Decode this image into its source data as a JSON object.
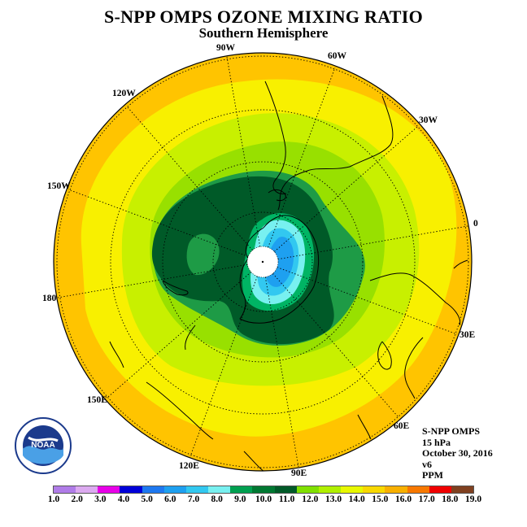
{
  "title": "S-NPP OMPS OZONE MIXING RATIO",
  "subtitle": "Southern Hemisphere",
  "lon_labels": {
    "w90": "90W",
    "w60": "60W",
    "w30": "30W",
    "e0": "0",
    "e30": "30E",
    "e60": "60E",
    "e90": "90E",
    "e120": "120E",
    "e150": "150E",
    "e180": "180",
    "w150": "150W",
    "w120": "120W"
  },
  "info": {
    "instrument": "S-NPP OMPS",
    "pressure": "15 hPa",
    "date": "October 30, 2016",
    "version": "v6",
    "units": "PPM"
  },
  "logo": {
    "text": "NOAA",
    "icon": "noaa-logo-icon"
  },
  "colorbar": {
    "ticks": [
      "1.0",
      "2.0",
      "3.0",
      "4.0",
      "5.0",
      "6.0",
      "7.0",
      "8.0",
      "9.0",
      "10.0",
      "11.0",
      "12.0",
      "13.0",
      "14.0",
      "15.0",
      "16.0",
      "17.0",
      "18.0",
      "19.0"
    ],
    "colors": [
      "#b07ce8",
      "#dcaaf0",
      "#e800e8",
      "#0000d8",
      "#1e78f0",
      "#1ea0f0",
      "#32c8f0",
      "#78f0f0",
      "#00a050",
      "#007832",
      "#005a28",
      "#80e000",
      "#b0f000",
      "#e8f800",
      "#f8d800",
      "#f8b000",
      "#f87800",
      "#f00000",
      "#804020"
    ]
  },
  "map": {
    "projection": "south-polar-stereographic",
    "fill_colors": {
      "outer": "#ffc400",
      "band14": "#f8f000",
      "band13": "#c8f000",
      "band12": "#98e000",
      "band11": "#1e9b46",
      "band10": "#005a28",
      "band9": "#00b464",
      "band8": "#78f0f0",
      "band7": "#32c8f0",
      "band6": "#1ea0f0"
    }
  }
}
